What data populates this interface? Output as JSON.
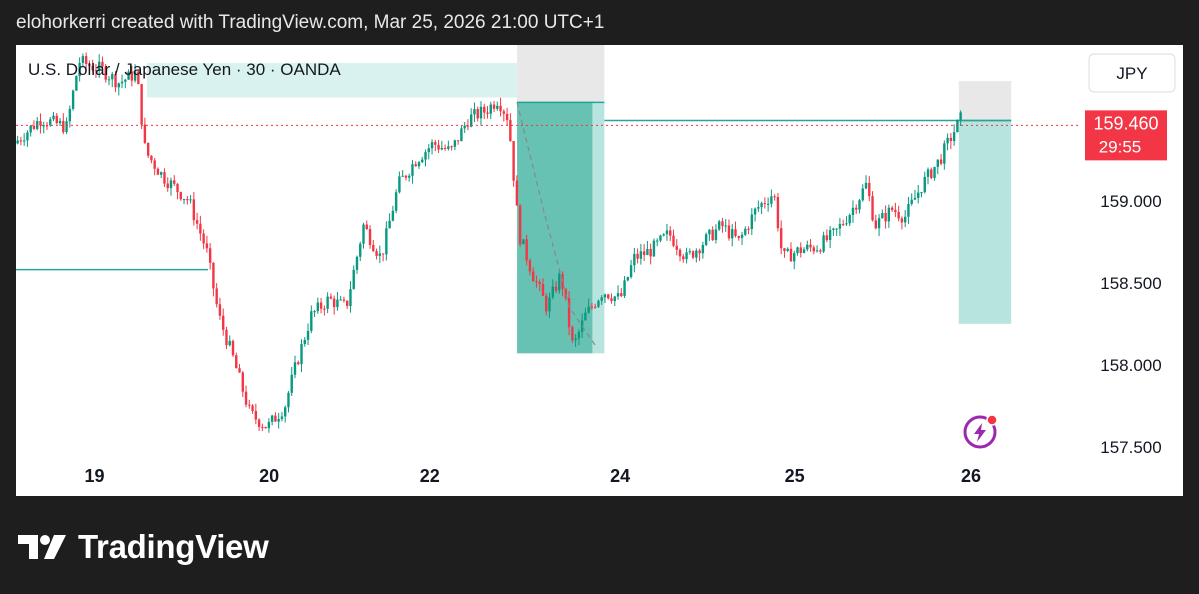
{
  "header": {
    "attribution": "elohorkerri created with TradingView.com, Mar 25, 2026 21:00 UTC+1"
  },
  "brand": {
    "name": "TradingView"
  },
  "chart_data": {
    "type": "candlestick",
    "title": "U.S. Dollar / Japanese Yen · 30 · OANDA",
    "currency": "JPY",
    "y_ticks": [
      "159.000",
      "158.500",
      "158.000",
      "157.500"
    ],
    "y_tick_values": [
      159.0,
      158.5,
      158.0,
      157.5
    ],
    "ylim": [
      157.45,
      159.95
    ],
    "x_ticks": [
      "19",
      "20",
      "22",
      "24",
      "25",
      "26"
    ],
    "x_tick_positions": [
      0.9,
      1.9,
      2.82,
      3.91,
      4.91,
      5.92
    ],
    "xlim": [
      0.45,
      6.55
    ],
    "last_price": {
      "value": 159.46,
      "label": "159.460",
      "countdown": "29:55",
      "color": "#f23645"
    },
    "up_color": "#089981",
    "down_color": "#f23645",
    "price_path": [
      [
        0.45,
        159.35
      ],
      [
        0.6,
        159.5
      ],
      [
        0.75,
        159.45
      ],
      [
        0.82,
        159.85
      ],
      [
        0.95,
        159.8
      ],
      [
        1.05,
        159.72
      ],
      [
        1.15,
        159.78
      ],
      [
        1.2,
        159.3
      ],
      [
        1.3,
        159.15
      ],
      [
        1.45,
        159.0
      ],
      [
        1.55,
        158.7
      ],
      [
        1.62,
        158.3
      ],
      [
        1.7,
        158.05
      ],
      [
        1.8,
        157.7
      ],
      [
        1.9,
        157.62
      ],
      [
        2.0,
        157.75
      ],
      [
        2.05,
        157.95
      ],
      [
        2.15,
        158.3
      ],
      [
        2.25,
        158.4
      ],
      [
        2.35,
        158.35
      ],
      [
        2.45,
        158.85
      ],
      [
        2.55,
        158.65
      ],
      [
        2.65,
        159.1
      ],
      [
        2.75,
        159.25
      ],
      [
        2.85,
        159.35
      ],
      [
        2.95,
        159.3
      ],
      [
        3.05,
        159.5
      ],
      [
        3.15,
        159.55
      ],
      [
        3.22,
        159.62
      ],
      [
        3.28,
        159.5
      ],
      [
        3.34,
        158.8
      ],
      [
        3.42,
        158.55
      ],
      [
        3.5,
        158.35
      ],
      [
        3.58,
        158.55
      ],
      [
        3.65,
        158.1
      ],
      [
        3.72,
        158.3
      ],
      [
        3.82,
        158.45
      ],
      [
        3.92,
        158.4
      ],
      [
        4.0,
        158.65
      ],
      [
        4.1,
        158.7
      ],
      [
        4.2,
        158.8
      ],
      [
        4.3,
        158.65
      ],
      [
        4.4,
        158.75
      ],
      [
        4.5,
        158.85
      ],
      [
        4.6,
        158.75
      ],
      [
        4.7,
        158.95
      ],
      [
        4.8,
        159.05
      ],
      [
        4.85,
        158.65
      ],
      [
        4.95,
        158.7
      ],
      [
        5.05,
        158.72
      ],
      [
        5.15,
        158.8
      ],
      [
        5.25,
        158.95
      ],
      [
        5.33,
        159.1
      ],
      [
        5.38,
        158.85
      ],
      [
        5.48,
        158.95
      ],
      [
        5.55,
        158.9
      ],
      [
        5.65,
        159.1
      ],
      [
        5.75,
        159.25
      ],
      [
        5.82,
        159.4
      ],
      [
        5.87,
        159.5
      ]
    ],
    "annotations": {
      "top_zone": {
        "x0": 1.2,
        "x1": 3.32,
        "y0": 159.63,
        "y1": 159.84,
        "color": "#cdeee9"
      },
      "left_level": {
        "x0": 0.45,
        "x1": 1.55,
        "y": 158.58,
        "color": "#26a69a"
      },
      "short_position_1": {
        "x0": 3.32,
        "x1": 3.82,
        "entry": 159.6,
        "stop": 159.98,
        "target": 158.07,
        "path": [
          [
            3.32,
            159.6
          ],
          [
            3.47,
            158.95
          ],
          [
            3.62,
            158.35
          ],
          [
            3.78,
            158.1
          ]
        ],
        "path_color": "#888888"
      },
      "short_position_2": {
        "x0": 5.85,
        "x1": 6.15,
        "entry": 159.49,
        "stop": 159.73,
        "target": 158.25
      },
      "level_line": {
        "x0": 3.82,
        "x1": 6.15,
        "y": 159.49,
        "color": "#26a69a"
      }
    }
  }
}
